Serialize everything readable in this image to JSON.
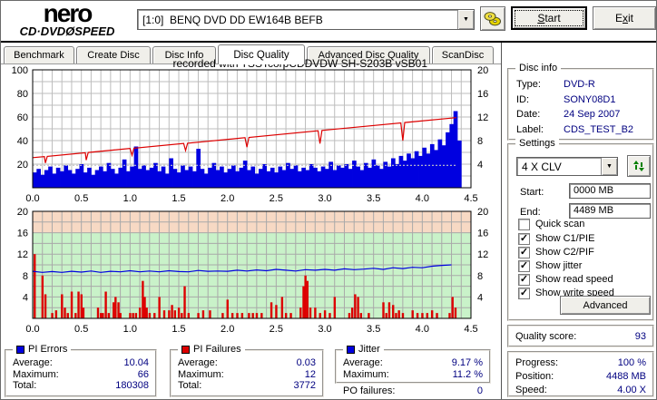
{
  "header": {
    "drive_select": "[1:0]  BENQ DVD DD EW164B BEFB",
    "start_button": {
      "key": "S",
      "rest": "tart"
    },
    "exit_button": {
      "pre": "E",
      "key": "x",
      "rest": "it"
    }
  },
  "logo": {
    "name": "nero",
    "product_left": "CD·DVD",
    "disc_glyph": "Ø",
    "product_right": "SPEED"
  },
  "tabs": [
    {
      "label": "Benchmark"
    },
    {
      "label": "Create Disc"
    },
    {
      "label": "Disc Info"
    },
    {
      "label": "Disc Quality"
    },
    {
      "label": "Advanced Disc Quality"
    },
    {
      "label": "ScanDisc"
    }
  ],
  "active_tab": "Disc Quality",
  "chart_data": [
    {
      "type": "bar+line",
      "name": "PI Errors with read/write speed",
      "title": "recorded with TSSTcorpCDDVDW SH-S203B   vSB01",
      "x_axis": {
        "min": 0,
        "max": 4.5,
        "unit": "GB",
        "labels": [
          "0.0",
          "0.5",
          "1.0",
          "1.5",
          "2.0",
          "2.5",
          "3.0",
          "3.5",
          "4.0",
          "4.5"
        ]
      },
      "left_axis": {
        "min": 0,
        "max": 100,
        "ticks": [
          20,
          40,
          60,
          80,
          100
        ],
        "series": "PI Errors"
      },
      "right_axis": {
        "min": 0,
        "max": 20,
        "ticks": [
          4,
          8,
          12,
          16,
          20
        ],
        "series": "Speed (X)"
      },
      "bars": {
        "name": "PI Errors",
        "color": "#0000e0",
        "x_step": 0.04,
        "values": [
          13,
          16,
          11,
          15,
          18,
          12,
          17,
          14,
          19,
          15,
          12,
          16,
          20,
          13,
          17,
          11,
          15,
          18,
          14,
          21,
          16,
          12,
          17,
          24,
          14,
          18,
          35,
          16,
          19,
          15,
          17,
          21,
          14,
          18,
          12,
          25,
          16,
          13,
          19,
          15,
          18,
          14,
          33,
          16,
          12,
          17,
          21,
          15,
          18,
          13,
          16,
          19,
          14,
          17,
          23,
          15,
          18,
          12,
          16,
          20,
          14,
          17,
          13,
          18,
          15,
          21,
          16,
          19,
          14,
          17,
          15,
          20,
          17,
          14,
          18,
          16,
          22,
          15,
          19,
          17,
          20,
          16,
          23,
          18,
          15,
          21,
          17,
          24,
          19,
          16,
          22,
          18,
          25,
          20,
          27,
          23,
          29,
          25,
          31,
          27,
          34,
          29,
          37,
          32,
          41,
          36,
          47,
          54,
          65,
          40
        ]
      },
      "write_speed_line": {
        "name": "Write speed",
        "color": "#dd0000",
        "scale": "left",
        "points": [
          [
            0,
            25.5
          ],
          [
            0.12,
            26.4
          ],
          [
            0.13,
            21
          ],
          [
            0.15,
            26.6
          ],
          [
            0.54,
            29.7
          ],
          [
            0.55,
            23.5
          ],
          [
            0.57,
            29.9
          ],
          [
            1.0,
            33.3
          ],
          [
            1.02,
            27.5
          ],
          [
            1.04,
            33.5
          ],
          [
            1.55,
            37.6
          ],
          [
            1.57,
            31.5
          ],
          [
            1.59,
            37.8
          ],
          [
            2.18,
            42.5
          ],
          [
            2.2,
            34.5
          ],
          [
            2.22,
            42.7
          ],
          [
            2.93,
            48.4
          ],
          [
            2.95,
            37.5
          ],
          [
            2.97,
            48.6
          ],
          [
            3.78,
            55.0
          ],
          [
            3.8,
            40
          ],
          [
            3.82,
            55.3
          ],
          [
            4.35,
            59.5
          ]
        ]
      },
      "read_speed_line": {
        "name": "Read speed",
        "color": "#c6c6c6",
        "scale": "left",
        "value": 19,
        "x_end": 4.36,
        "dashed": true
      }
    },
    {
      "type": "bar+line",
      "name": "PI Failures with jitter",
      "x_axis": {
        "min": 0,
        "max": 4.5,
        "unit": "GB",
        "labels": [
          "0.0",
          "0.5",
          "1.0",
          "1.5",
          "2.0",
          "2.5",
          "3.0",
          "3.5",
          "4.0",
          "4.5"
        ]
      },
      "y_axis": {
        "min": 0,
        "max": 20,
        "ticks": [
          4,
          8,
          12,
          16,
          20
        ]
      },
      "zones": [
        {
          "from": 0,
          "to": 16,
          "color": "#c9f2c9"
        },
        {
          "from": 16,
          "to": 20,
          "color": "#f7d9c4"
        }
      ],
      "bars": {
        "name": "PI Failures",
        "color": "#dd0000",
        "points": [
          [
            0.02,
            12
          ],
          [
            0.1,
            8
          ],
          [
            0.13,
            4.5
          ],
          [
            0.2,
            1
          ],
          [
            0.24,
            1.5
          ],
          [
            0.3,
            4.5
          ],
          [
            0.33,
            2
          ],
          [
            0.36,
            1
          ],
          [
            0.4,
            5
          ],
          [
            0.44,
            1
          ],
          [
            0.47,
            5
          ],
          [
            0.5,
            4.5
          ],
          [
            0.52,
            2
          ],
          [
            0.67,
            2
          ],
          [
            0.7,
            1
          ],
          [
            0.72,
            1
          ],
          [
            0.75,
            5
          ],
          [
            0.78,
            1
          ],
          [
            0.83,
            3
          ],
          [
            0.85,
            4
          ],
          [
            0.88,
            3
          ],
          [
            0.9,
            1
          ],
          [
            1.0,
            1
          ],
          [
            1.03,
            1
          ],
          [
            1.06,
            1
          ],
          [
            1.1,
            2
          ],
          [
            1.13,
            7
          ],
          [
            1.15,
            4
          ],
          [
            1.17,
            2
          ],
          [
            1.2,
            1
          ],
          [
            1.25,
            1
          ],
          [
            1.3,
            4
          ],
          [
            1.35,
            1.5
          ],
          [
            1.4,
            1.5
          ],
          [
            1.43,
            2.5
          ],
          [
            1.46,
            1.5
          ],
          [
            1.5,
            2
          ],
          [
            1.53,
            1
          ],
          [
            1.56,
            6
          ],
          [
            1.6,
            1
          ],
          [
            1.7,
            1
          ],
          [
            1.75,
            1.5
          ],
          [
            1.82,
            1.5
          ],
          [
            1.95,
            1
          ],
          [
            2.0,
            3.5
          ],
          [
            2.05,
            1
          ],
          [
            2.1,
            1
          ],
          [
            2.15,
            1
          ],
          [
            2.22,
            1
          ],
          [
            2.26,
            1
          ],
          [
            2.3,
            1
          ],
          [
            2.35,
            1
          ],
          [
            2.45,
            3
          ],
          [
            2.5,
            2.5
          ],
          [
            2.56,
            4
          ],
          [
            2.6,
            1
          ],
          [
            2.65,
            1
          ],
          [
            2.75,
            2
          ],
          [
            2.78,
            6
          ],
          [
            2.8,
            8
          ],
          [
            2.82,
            7
          ],
          [
            2.85,
            2
          ],
          [
            2.9,
            2
          ],
          [
            2.95,
            1
          ],
          [
            3.0,
            1.5
          ],
          [
            3.05,
            1
          ],
          [
            3.1,
            4
          ],
          [
            3.25,
            1
          ],
          [
            3.28,
            2
          ],
          [
            3.31,
            4.5
          ],
          [
            3.34,
            4
          ],
          [
            3.37,
            1
          ],
          [
            3.45,
            1
          ],
          [
            3.6,
            3
          ],
          [
            3.63,
            1
          ],
          [
            3.66,
            3
          ],
          [
            3.7,
            2.5
          ],
          [
            3.73,
            1
          ],
          [
            3.76,
            1.5
          ],
          [
            3.8,
            1
          ],
          [
            3.9,
            1.5
          ],
          [
            3.95,
            1
          ],
          [
            4.0,
            1
          ],
          [
            4.05,
            1
          ],
          [
            4.1,
            1.5
          ],
          [
            4.15,
            1
          ],
          [
            4.28,
            1
          ],
          [
            4.31,
            4
          ],
          [
            4.34,
            2
          ]
        ]
      },
      "jitter_line": {
        "name": "Jitter",
        "color": "#0000e0",
        "unit": "%",
        "x_step": 0.1,
        "values": [
          8.8,
          8.6,
          8.75,
          8.6,
          8.8,
          8.65,
          8.85,
          8.6,
          8.8,
          8.7,
          8.9,
          8.7,
          8.85,
          8.7,
          8.9,
          8.75,
          8.7,
          8.95,
          8.8,
          8.85,
          8.8,
          9.0,
          8.85,
          9.05,
          8.9,
          9.15,
          9.0,
          8.85,
          9.1,
          9.0,
          9.15,
          9.0,
          9.25,
          9.1,
          9.2,
          9.35,
          9.15,
          9.45,
          9.3,
          9.55,
          9.45,
          9.75,
          9.9,
          10.0
        ]
      }
    }
  ],
  "stats": {
    "pi_errors": {
      "title": "PI Errors",
      "color": "#0000e0",
      "avg_label": "Average:",
      "avg": "10.04",
      "max_label": "Maximum:",
      "max": "66",
      "total_label": "Total:",
      "total": "180308"
    },
    "pi_failures": {
      "title": "PI Failures",
      "color": "#dd0000",
      "avg_label": "Average:",
      "avg": "0.03",
      "max_label": "Maximum:",
      "max": "12",
      "total_label": "Total:",
      "total": "3772"
    },
    "jitter": {
      "title": "Jitter",
      "color": "#0000e0",
      "avg_label": "Average:",
      "avg": "9.17 %",
      "max_label": "Maximum:",
      "max": "11.2 %"
    },
    "po_failures_label": "PO failures:",
    "po_failures": "0"
  },
  "disc_info": {
    "title": "Disc info",
    "type_label": "Type:",
    "type": "DVD-R",
    "id_label": "ID:",
    "id": "SONY08D1",
    "date_label": "Date:",
    "date": "24 Sep 2007",
    "label_label": "Label:",
    "label": "CDS_TEST_B2"
  },
  "settings": {
    "title": "Settings",
    "speed": "4 X CLV",
    "start_label": "Start:",
    "start_value": "0000 MB",
    "end_label": "End:",
    "end_value": "4489 MB",
    "checkboxes": [
      {
        "label": "Quick scan",
        "checked": false
      },
      {
        "label": "Show C1/PIE",
        "checked": true
      },
      {
        "label": "Show C2/PIF",
        "checked": true
      },
      {
        "label": "Show jitter",
        "checked": true
      },
      {
        "label": "Show read speed",
        "checked": true
      },
      {
        "label": "Show write speed",
        "checked": true
      }
    ],
    "advanced_label": "Advanced"
  },
  "quality": {
    "label": "Quality score:",
    "value": "93"
  },
  "progress": {
    "progress_label": "Progress:",
    "progress": "100 %",
    "position_label": "Position:",
    "position": "4488 MB",
    "speed_label": "Speed:",
    "speed": "4.00 X"
  }
}
